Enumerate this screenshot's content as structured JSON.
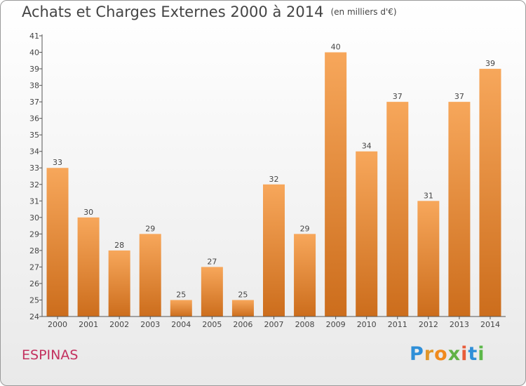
{
  "header": {
    "title": "Achats et Charges Externes 2000 à 2014",
    "unit": "(en milliers d'€)"
  },
  "footer": {
    "town": "ESPINAS",
    "brand": "Proxiti"
  },
  "colors": {
    "bar_light": "#f7a75b",
    "bar_dark": "#cc6d1c",
    "town": "#c3305e",
    "axis": "#555555"
  },
  "chart_data": {
    "type": "bar",
    "title": "Achats et Charges Externes 2000 à 2014",
    "subtitle": "(en milliers d'€)",
    "categories": [
      "2000",
      "2001",
      "2002",
      "2003",
      "2004",
      "2005",
      "2006",
      "2007",
      "2008",
      "2009",
      "2010",
      "2011",
      "2012",
      "2013",
      "2014"
    ],
    "values": [
      33,
      30,
      28,
      29,
      25,
      27,
      25,
      32,
      29,
      40,
      34,
      37,
      31,
      37,
      39
    ],
    "ylim": [
      24,
      41
    ],
    "yticks": [
      24,
      25,
      26,
      27,
      28,
      29,
      30,
      31,
      32,
      33,
      34,
      35,
      36,
      37,
      38,
      39,
      40,
      41
    ],
    "grid": false,
    "legend": "none"
  }
}
